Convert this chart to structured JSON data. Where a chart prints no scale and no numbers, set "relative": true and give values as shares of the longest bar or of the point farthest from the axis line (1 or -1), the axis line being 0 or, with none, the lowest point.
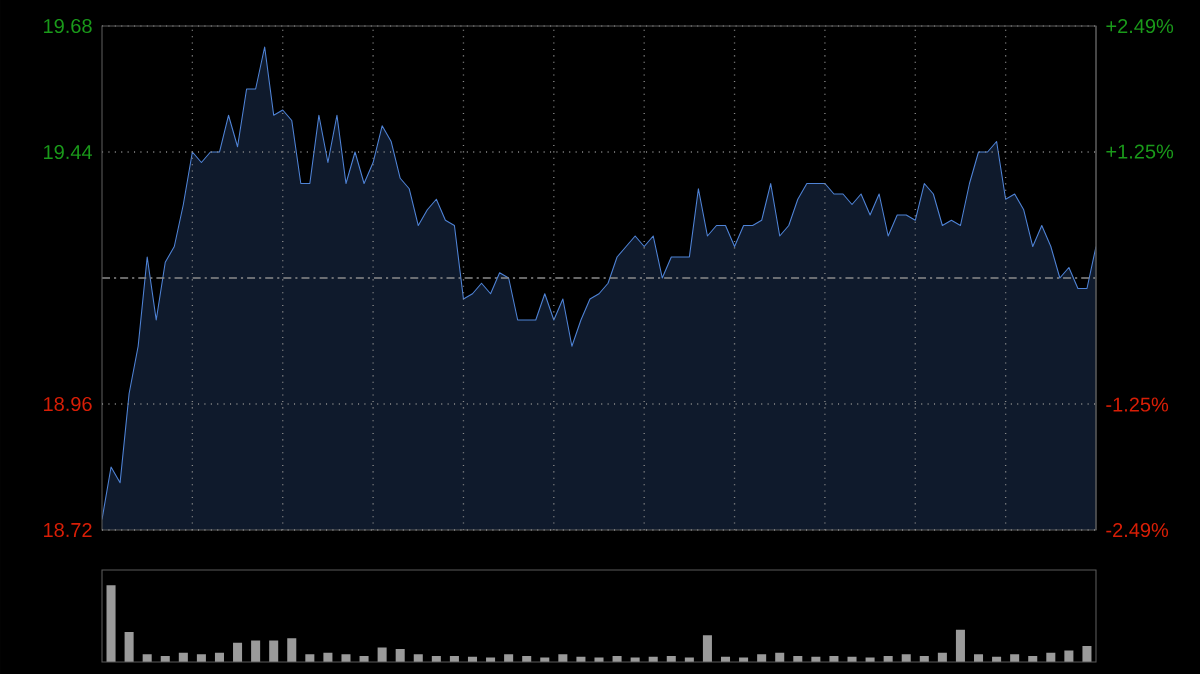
{
  "chart_data": [
    {
      "type": "area",
      "categories": [
        null,
        null,
        null,
        null,
        null,
        null,
        null,
        null,
        null,
        null,
        null,
        null,
        null,
        null,
        null,
        null,
        null,
        null,
        null,
        null,
        null,
        null,
        null,
        null,
        null,
        null,
        null,
        null,
        null,
        null,
        null,
        null,
        null,
        null,
        null,
        null,
        null,
        null,
        null,
        null,
        null,
        null,
        null,
        null,
        null,
        null,
        null,
        null,
        null,
        null,
        null,
        null,
        null,
        null,
        null,
        null,
        null,
        null,
        null,
        null,
        null,
        null,
        null,
        null,
        null,
        null,
        null,
        null,
        null,
        null,
        null,
        null,
        null,
        null,
        null,
        null,
        null,
        null,
        null,
        null,
        null,
        null,
        null,
        null,
        null,
        null,
        null,
        null,
        null,
        null,
        null,
        null,
        null,
        null,
        null,
        null,
        null,
        null,
        null,
        null,
        null,
        null,
        null,
        null,
        null,
        null,
        null,
        null,
        null,
        null,
        null
      ],
      "series": [
        {
          "color": "#4f83d6",
          "values": [
            18.74,
            18.84,
            18.81,
            18.98,
            19.07,
            19.24,
            19.12,
            19.23,
            19.26,
            19.34,
            19.44,
            19.42,
            19.44,
            19.44,
            19.51,
            19.45,
            19.56,
            19.56,
            19.64,
            19.51,
            19.52,
            19.5,
            19.38,
            19.38,
            19.51,
            19.42,
            19.51,
            19.38,
            19.44,
            19.38,
            19.42,
            19.49,
            19.46,
            19.39,
            19.37,
            19.3,
            19.33,
            19.35,
            19.31,
            19.3,
            19.16,
            19.17,
            19.19,
            19.17,
            19.21,
            19.2,
            19.12,
            19.12,
            19.12,
            19.17,
            19.12,
            19.16,
            19.07,
            19.12,
            19.16,
            19.17,
            19.19,
            19.24,
            19.26,
            19.28,
            19.26,
            19.28,
            19.2,
            19.24,
            19.24,
            19.24,
            19.37,
            19.28,
            19.3,
            19.3,
            19.26,
            19.3,
            19.3,
            19.31,
            19.38,
            19.28,
            19.3,
            19.35,
            19.38,
            19.38,
            19.38,
            19.36,
            19.36,
            19.34,
            19.36,
            19.32,
            19.36,
            19.28,
            19.32,
            19.32,
            19.31,
            19.38,
            19.36,
            19.3,
            19.31,
            19.3,
            19.38,
            19.44,
            19.44,
            19.46,
            19.35,
            19.36,
            19.33,
            19.26,
            19.3,
            19.26,
            19.2,
            19.22,
            19.18,
            19.18,
            19.26
          ]
        }
      ],
      "ylim": [
        18.72,
        19.68
      ],
      "yticks": [
        18.72,
        18.96,
        19.44,
        19.68
      ],
      "y2lim": [
        -2.49,
        2.49
      ],
      "y2ticks": [
        {
          "value": -2.49,
          "label": "-2.49%"
        },
        {
          "value": -1.25,
          "label": "-1.25%"
        },
        {
          "value": 1.25,
          "label": "+1.25%"
        },
        {
          "value": 2.49,
          "label": "+2.49%"
        }
      ],
      "ref_lines": [
        {
          "axis": "y",
          "value": 19.2
        }
      ],
      "grid": true,
      "tick_labels": "y"
    },
    {
      "type": "bar",
      "relative": true,
      "color": "#9a9a9a",
      "categories": [
        null,
        null,
        null,
        null,
        null,
        null,
        null,
        null,
        null,
        null,
        null,
        null,
        null,
        null,
        null,
        null,
        null,
        null,
        null,
        null,
        null,
        null,
        null,
        null,
        null,
        null,
        null,
        null,
        null,
        null,
        null,
        null,
        null,
        null,
        null,
        null,
        null,
        null,
        null,
        null,
        null,
        null,
        null,
        null,
        null,
        null,
        null,
        null,
        null,
        null,
        null,
        null,
        null,
        null,
        null
      ],
      "values": [
        1.0,
        0.39,
        0.1,
        0.08,
        0.12,
        0.1,
        0.12,
        0.25,
        0.28,
        0.28,
        0.31,
        0.1,
        0.12,
        0.1,
        0.08,
        0.19,
        0.17,
        0.1,
        0.08,
        0.08,
        0.07,
        0.06,
        0.1,
        0.08,
        0.06,
        0.1,
        0.07,
        0.06,
        0.08,
        0.06,
        0.07,
        0.08,
        0.06,
        0.35,
        0.07,
        0.06,
        0.1,
        0.12,
        0.08,
        0.07,
        0.08,
        0.07,
        0.06,
        0.08,
        0.1,
        0.08,
        0.12,
        0.42,
        0.1,
        0.07,
        0.1,
        0.08,
        0.12,
        0.15,
        0.21
      ]
    }
  ]
}
